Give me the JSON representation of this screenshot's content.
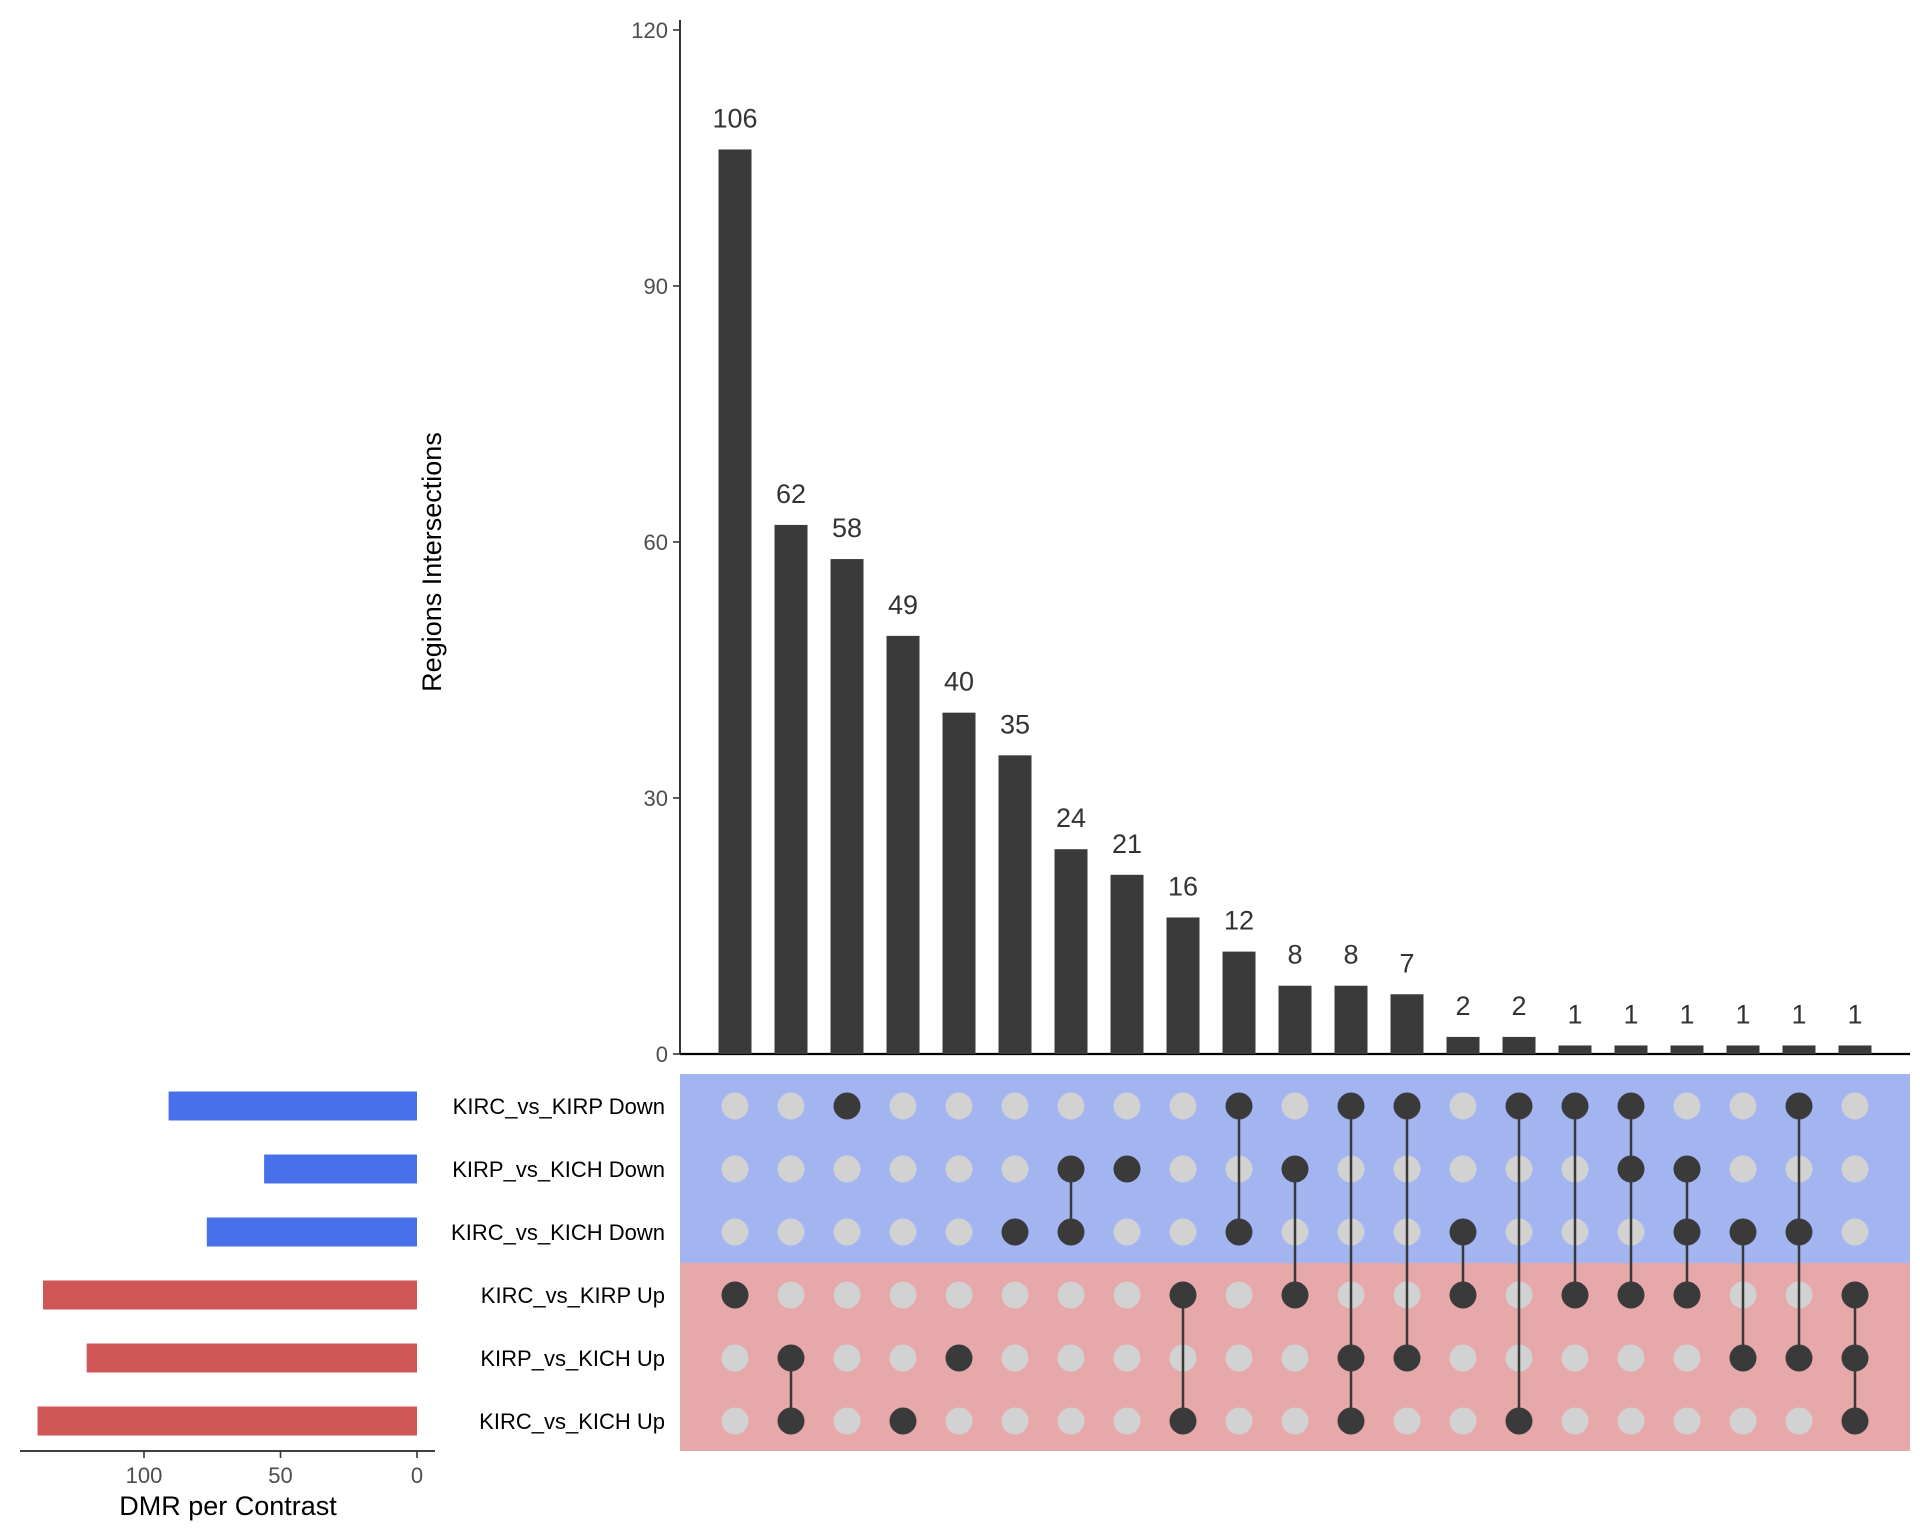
{
  "chart_data": {
    "type": "upset",
    "intersections": {
      "ylabel": "Regions Intersections",
      "ylim": [
        0,
        120
      ],
      "yticks": [
        0,
        30,
        60,
        90,
        120
      ],
      "bar_color": "#3a3a3a",
      "bars": [
        {
          "value": 106,
          "label": "106",
          "sets": [
            "KIRC_vs_KIRP Up"
          ]
        },
        {
          "value": 62,
          "label": "62",
          "sets": [
            "KIRP_vs_KICH Up",
            "KIRC_vs_KICH Up"
          ]
        },
        {
          "value": 58,
          "label": "58",
          "sets": [
            "KIRC_vs_KIRP Down"
          ]
        },
        {
          "value": 49,
          "label": "49",
          "sets": [
            "KIRC_vs_KICH Up"
          ]
        },
        {
          "value": 40,
          "label": "40",
          "sets": [
            "KIRP_vs_KICH Up"
          ]
        },
        {
          "value": 35,
          "label": "35",
          "sets": [
            "KIRC_vs_KICH Down"
          ]
        },
        {
          "value": 24,
          "label": "24",
          "sets": [
            "KIRP_vs_KICH Down",
            "KIRC_vs_KICH Down"
          ]
        },
        {
          "value": 21,
          "label": "21",
          "sets": [
            "KIRP_vs_KICH Down"
          ]
        },
        {
          "value": 16,
          "label": "16",
          "sets": [
            "KIRC_vs_KIRP Up",
            "KIRC_vs_KICH Up"
          ]
        },
        {
          "value": 12,
          "label": "12",
          "sets": [
            "KIRC_vs_KIRP Down",
            "KIRC_vs_KICH Down"
          ]
        },
        {
          "value": 8,
          "label": "8",
          "sets": [
            "KIRP_vs_KICH Down",
            "KIRC_vs_KIRP Up"
          ]
        },
        {
          "value": 8,
          "label": "8",
          "sets": [
            "KIRC_vs_KIRP Down",
            "KIRP_vs_KICH Up",
            "KIRC_vs_KICH Up"
          ]
        },
        {
          "value": 7,
          "label": "7",
          "sets": [
            "KIRC_vs_KIRP Down",
            "KIRP_vs_KICH Up"
          ]
        },
        {
          "value": 2,
          "label": "2",
          "sets": [
            "KIRC_vs_KICH Down",
            "KIRC_vs_KIRP Up"
          ]
        },
        {
          "value": 2,
          "label": "2",
          "sets": [
            "KIRC_vs_KIRP Down",
            "KIRC_vs_KICH Up"
          ]
        },
        {
          "value": 1,
          "label": "1",
          "sets": [
            "KIRC_vs_KIRP Down",
            "KIRC_vs_KIRP Up"
          ]
        },
        {
          "value": 1,
          "label": "1",
          "sets": [
            "KIRC_vs_KIRP Down",
            "KIRP_vs_KICH Down",
            "KIRC_vs_KIRP Up"
          ]
        },
        {
          "value": 1,
          "label": "1",
          "sets": [
            "KIRP_vs_KICH Down",
            "KIRC_vs_KICH Down",
            "KIRC_vs_KIRP Up"
          ]
        },
        {
          "value": 1,
          "label": "1",
          "sets": [
            "KIRC_vs_KICH Down",
            "KIRP_vs_KICH Up"
          ]
        },
        {
          "value": 1,
          "label": "1",
          "sets": [
            "KIRC_vs_KIRP Down",
            "KIRC_vs_KICH Down",
            "KIRP_vs_KICH Up"
          ]
        },
        {
          "value": 1,
          "label": "1",
          "sets": [
            "KIRC_vs_KIRP Up",
            "KIRP_vs_KICH Up",
            "KIRC_vs_KICH Up"
          ]
        }
      ]
    },
    "sets": {
      "xlabel": "DMR per Contrast",
      "xlim": [
        0,
        150
      ],
      "xticks": [
        {
          "value": 100,
          "label": "100"
        },
        {
          "value": 50,
          "label": "50"
        },
        {
          "value": 0,
          "label": "0"
        }
      ],
      "items": [
        {
          "name": "KIRC_vs_KIRP Down",
          "size": 91,
          "group": "down"
        },
        {
          "name": "KIRP_vs_KICH Down",
          "size": 56,
          "group": "down"
        },
        {
          "name": "KIRC_vs_KICH Down",
          "size": 77,
          "group": "down"
        },
        {
          "name": "KIRC_vs_KIRP Up",
          "size": 137,
          "group": "up"
        },
        {
          "name": "KIRP_vs_KICH Up",
          "size": 121,
          "group": "up"
        },
        {
          "name": "KIRC_vs_KICH Up",
          "size": 139,
          "group": "up"
        }
      ]
    },
    "colors": {
      "down_bar": "#4870ea",
      "up_bar": "#cf5656",
      "down_band": "#a3b5f1",
      "up_band": "#e6a8a8",
      "dot_on": "#3a3a3a",
      "dot_off": "#d2d2d2"
    }
  }
}
